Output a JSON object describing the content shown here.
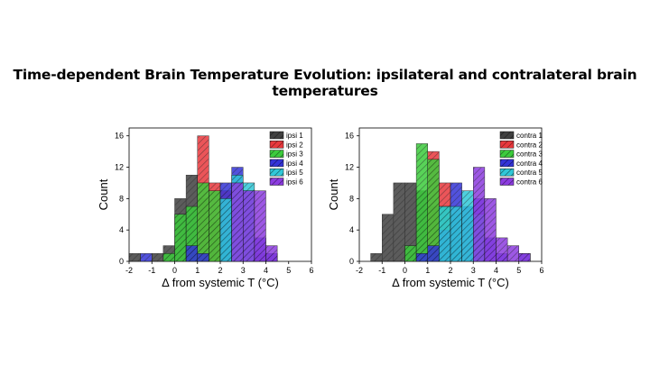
{
  "title": "Time-dependent Brain Temperature Evolution: ipsilateral and contralateral brain temperatures",
  "colors": {
    "series1": "#404040",
    "series2": "#e8383d",
    "series3": "#3ccc3c",
    "series4": "#3434d8",
    "series5": "#30c8d8",
    "series6": "#8c3ce0"
  },
  "chart_data": [
    {
      "type": "histogram",
      "id": "ipsi",
      "xlabel": "Δ from systemic T (°C)",
      "ylabel": "Count",
      "xlim": [
        -2,
        6
      ],
      "ylim": [
        0,
        17
      ],
      "xticks": [
        -2,
        -1,
        0,
        1,
        2,
        3,
        4,
        5,
        6
      ],
      "yticks": [
        0,
        4,
        8,
        12,
        16
      ],
      "bin_width": 0.5,
      "legend_position": "top-right",
      "series": [
        {
          "name": "ipsi 1",
          "bins": [
            [
              -2.0,
              1
            ],
            [
              -1.0,
              1
            ],
            [
              -0.5,
              2
            ],
            [
              0.0,
              8
            ],
            [
              0.5,
              11
            ],
            [
              1.0,
              8
            ],
            [
              1.5,
              5
            ],
            [
              2.0,
              4
            ],
            [
              3.0,
              2
            ],
            [
              3.5,
              1
            ],
            [
              4.0,
              1
            ]
          ]
        },
        {
          "name": "ipsi 2",
          "bins": [
            [
              1.0,
              16
            ],
            [
              1.5,
              10
            ],
            [
              2.0,
              9
            ]
          ]
        },
        {
          "name": "ipsi 3",
          "bins": [
            [
              -0.5,
              1
            ],
            [
              0.0,
              6
            ],
            [
              0.5,
              7
            ],
            [
              1.0,
              10
            ],
            [
              1.5,
              9
            ],
            [
              2.0,
              3
            ]
          ]
        },
        {
          "name": "ipsi 4",
          "bins": [
            [
              -1.5,
              1
            ],
            [
              0.5,
              2
            ],
            [
              1.0,
              1
            ],
            [
              2.0,
              10
            ],
            [
              2.5,
              12
            ],
            [
              3.0,
              9
            ],
            [
              3.5,
              3
            ],
            [
              4.0,
              1
            ]
          ]
        },
        {
          "name": "ipsi 5",
          "bins": [
            [
              2.0,
              8
            ],
            [
              2.5,
              11
            ],
            [
              3.0,
              10
            ]
          ]
        },
        {
          "name": "ipsi 6",
          "bins": [
            [
              2.5,
              10
            ],
            [
              3.0,
              9
            ],
            [
              3.5,
              9
            ],
            [
              4.0,
              2
            ]
          ]
        }
      ]
    },
    {
      "type": "histogram",
      "id": "contra",
      "xlabel": "Δ from systemic T (°C)",
      "ylabel": "Count",
      "xlim": [
        -2,
        6
      ],
      "ylim": [
        0,
        17
      ],
      "xticks": [
        -2,
        -1,
        0,
        1,
        2,
        3,
        4,
        5,
        6
      ],
      "yticks": [
        0,
        4,
        8,
        12,
        16
      ],
      "bin_width": 0.5,
      "legend_position": "top-right",
      "series": [
        {
          "name": "contra 1",
          "bins": [
            [
              -1.5,
              1
            ],
            [
              -1.0,
              6
            ],
            [
              -0.5,
              10
            ],
            [
              0.0,
              10
            ],
            [
              0.5,
              9
            ],
            [
              1.0,
              7
            ],
            [
              1.5,
              3
            ],
            [
              2.0,
              2
            ],
            [
              3.0,
              1
            ]
          ]
        },
        {
          "name": "contra 2",
          "bins": [
            [
              1.0,
              14
            ],
            [
              1.5,
              10
            ]
          ]
        },
        {
          "name": "contra 3",
          "bins": [
            [
              0.0,
              2
            ],
            [
              0.5,
              15
            ],
            [
              1.0,
              13
            ],
            [
              1.5,
              7
            ],
            [
              2.0,
              6
            ]
          ]
        },
        {
          "name": "contra 4",
          "bins": [
            [
              0.5,
              1
            ],
            [
              1.0,
              2
            ],
            [
              1.5,
              4
            ],
            [
              2.0,
              10
            ],
            [
              2.5,
              7
            ],
            [
              3.0,
              8
            ],
            [
              3.5,
              3
            ],
            [
              4.0,
              1
            ],
            [
              5.0,
              1
            ]
          ]
        },
        {
          "name": "contra 5",
          "bins": [
            [
              1.5,
              7
            ],
            [
              2.0,
              7
            ],
            [
              2.5,
              9
            ],
            [
              3.0,
              6
            ]
          ]
        },
        {
          "name": "contra 6",
          "bins": [
            [
              3.0,
              12
            ],
            [
              3.5,
              8
            ],
            [
              4.0,
              3
            ],
            [
              4.5,
              2
            ],
            [
              5.0,
              1
            ]
          ]
        }
      ]
    }
  ]
}
